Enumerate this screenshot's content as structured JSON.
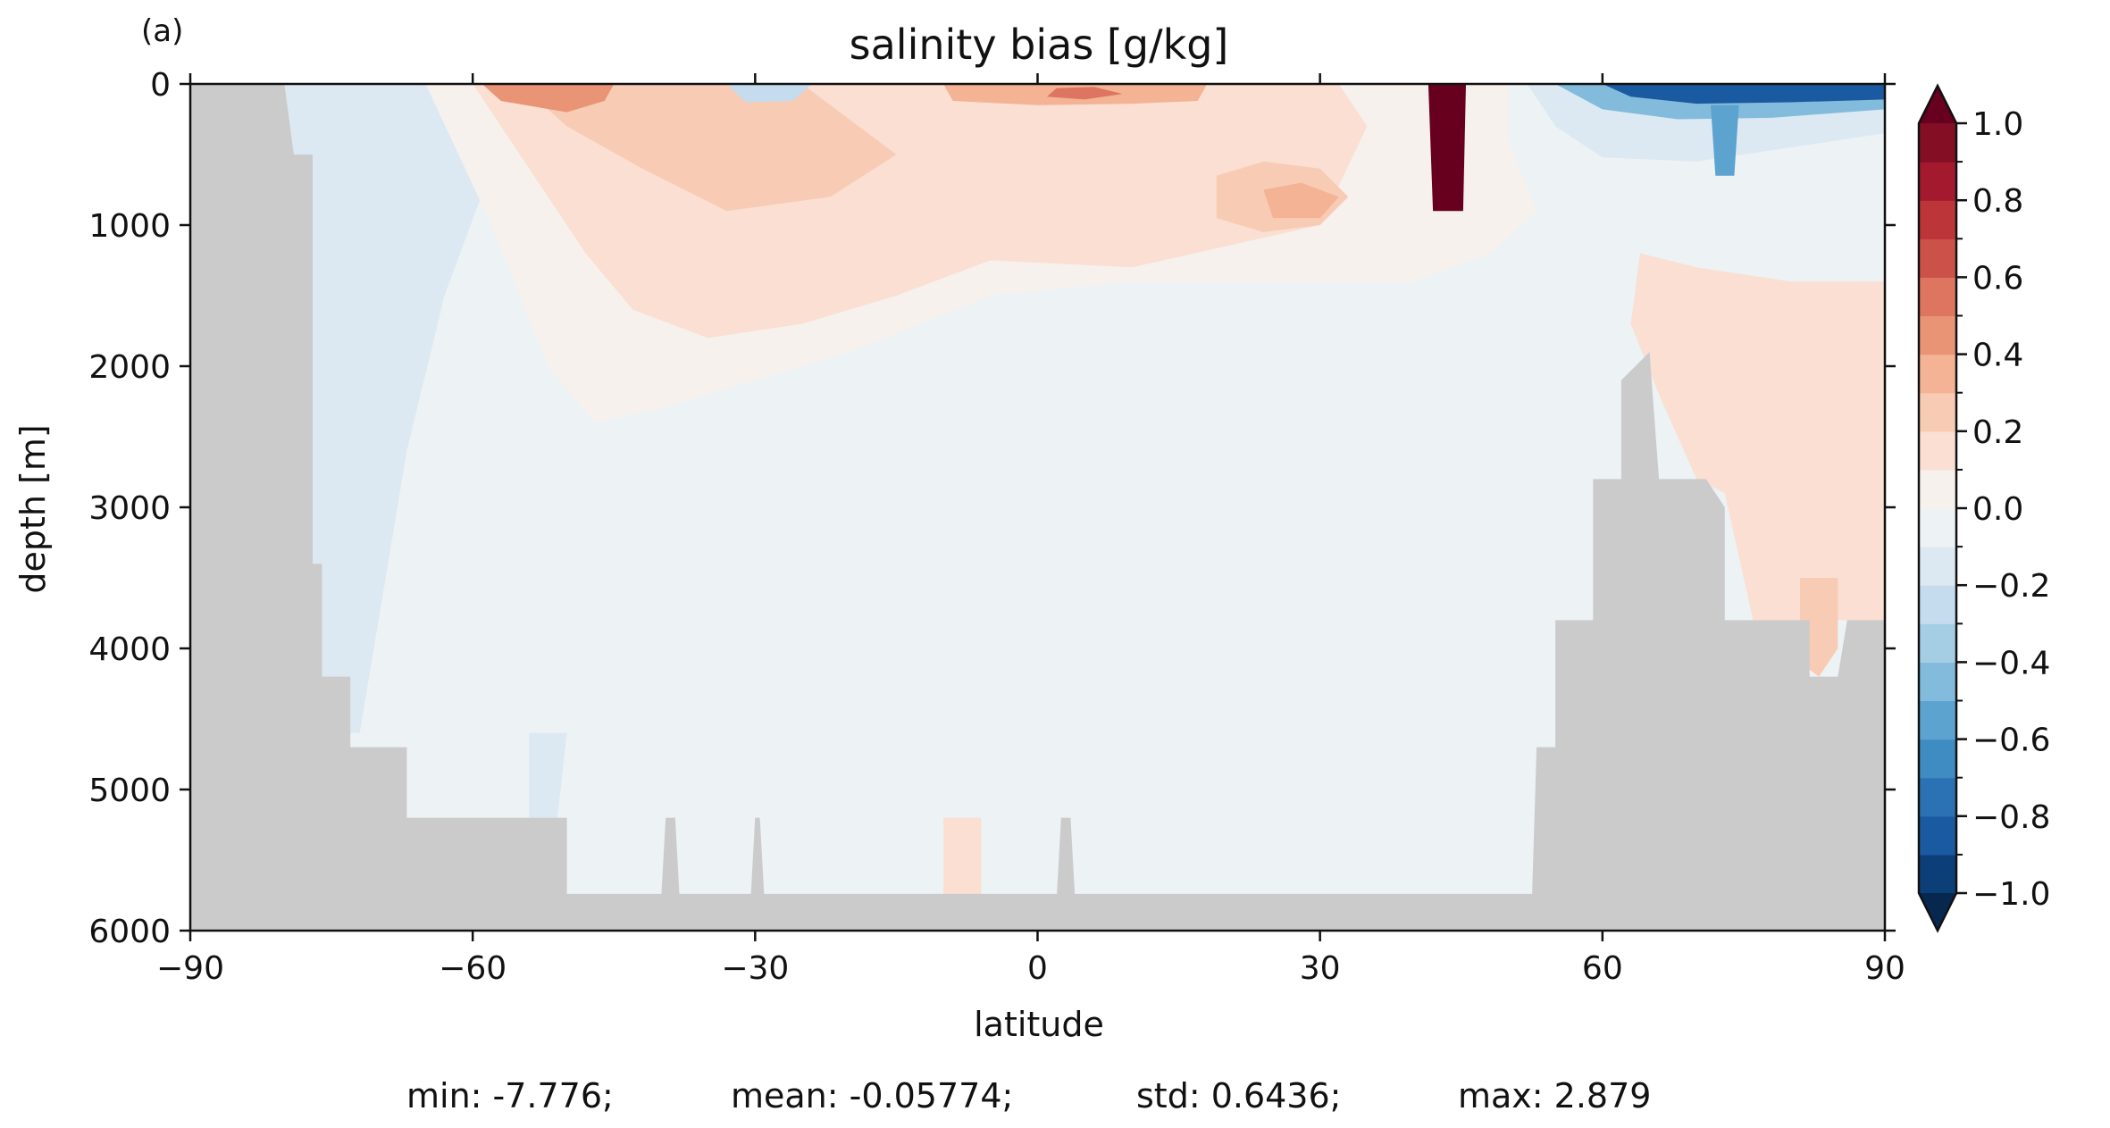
{
  "figure": {
    "panel_label": "(a)",
    "stats_line": {
      "min": "min: -7.776;",
      "mean": "mean: -0.05774;",
      "std": "std: 0.6436;",
      "max": "max: 2.879"
    }
  },
  "chart_data": {
    "type": "heatmap",
    "title": "salinity bias [g/kg]",
    "xlabel": "latitude",
    "ylabel": "depth [m]",
    "xlim": [
      -90,
      90
    ],
    "ylim": [
      6000,
      0
    ],
    "y_inverted": true,
    "x_ticks": [
      {
        "value": -90,
        "label": "−90"
      },
      {
        "value": -60,
        "label": "−60"
      },
      {
        "value": -30,
        "label": "−30"
      },
      {
        "value": 0,
        "label": "0"
      },
      {
        "value": 30,
        "label": "30"
      },
      {
        "value": 60,
        "label": "60"
      },
      {
        "value": 90,
        "label": "90"
      }
    ],
    "y_ticks": [
      {
        "value": 0,
        "label": "0"
      },
      {
        "value": 1000,
        "label": "1000"
      },
      {
        "value": 2000,
        "label": "2000"
      },
      {
        "value": 3000,
        "label": "3000"
      },
      {
        "value": 4000,
        "label": "4000"
      },
      {
        "value": 5000,
        "label": "5000"
      },
      {
        "value": 6000,
        "label": "6000"
      }
    ],
    "colorbar": {
      "min": -1.0,
      "max": 1.0,
      "extend": "both",
      "levels": [
        -1.0,
        -0.9,
        -0.8,
        -0.7,
        -0.6,
        -0.5,
        -0.4,
        -0.3,
        -0.2,
        -0.1,
        0.0,
        0.1,
        0.2,
        0.3,
        0.4,
        0.5,
        0.6,
        0.7,
        0.8,
        0.9,
        1.0
      ],
      "colors": [
        "#0c3e78",
        "#1a5aa0",
        "#2a72b3",
        "#3e8cc2",
        "#5ca3d0",
        "#82bbdc",
        "#a5cde4",
        "#c4dced",
        "#dde9f2",
        "#edf2f5",
        "#f7f1ee",
        "#fadfd2",
        "#f8cbb5",
        "#f3b394",
        "#ea9476",
        "#dd7560",
        "#cb5249",
        "#bc3539",
        "#a31a2f",
        "#840e24"
      ],
      "under_color": "#06284f",
      "over_color": "#67001f",
      "tick_labels": [
        {
          "value": 1.0,
          "label": "1.0"
        },
        {
          "value": 0.8,
          "label": "0.8"
        },
        {
          "value": 0.6,
          "label": "0.6"
        },
        {
          "value": 0.4,
          "label": "0.4"
        },
        {
          "value": 0.2,
          "label": "0.2"
        },
        {
          "value": 0.0,
          "label": "0.0"
        },
        {
          "value": -0.2,
          "label": "−0.2"
        },
        {
          "value": -0.4,
          "label": "−0.4"
        },
        {
          "value": -0.6,
          "label": "−0.6"
        },
        {
          "value": -0.8,
          "label": "−0.8"
        },
        {
          "value": -1.0,
          "label": "−1.0"
        }
      ]
    },
    "land_color": "#cbcbcb",
    "background_bias": -0.05,
    "regions": [
      {
        "name": "antarctic-fresh-column",
        "value": -0.15,
        "poly": [
          [
            -80,
            0
          ],
          [
            -56,
            0
          ],
          [
            -58,
            600
          ],
          [
            -63,
            1500
          ],
          [
            -67,
            2600
          ],
          [
            -70,
            3800
          ],
          [
            -72,
            4600
          ],
          [
            -77,
            4600
          ],
          [
            -78,
            2000
          ],
          [
            -79,
            500
          ]
        ]
      },
      {
        "name": "subsurface-salty-lens",
        "value": 0.05,
        "poly": [
          [
            -65,
            0
          ],
          [
            -20,
            0
          ],
          [
            20,
            0
          ],
          [
            50,
            0
          ],
          [
            50,
            400
          ],
          [
            53,
            900
          ],
          [
            48,
            1200
          ],
          [
            40,
            1400
          ],
          [
            25,
            1400
          ],
          [
            10,
            1400
          ],
          [
            -5,
            1500
          ],
          [
            -20,
            1900
          ],
          [
            -30,
            2100
          ],
          [
            -40,
            2300
          ],
          [
            -47,
            2400
          ],
          [
            -52,
            2000
          ],
          [
            -58,
            1000
          ]
        ]
      },
      {
        "name": "mid-salty-band",
        "value": 0.15,
        "poly": [
          [
            -60,
            0
          ],
          [
            -20,
            0
          ],
          [
            0,
            0
          ],
          [
            20,
            0
          ],
          [
            32,
            0
          ],
          [
            35,
            300
          ],
          [
            30,
            1000
          ],
          [
            20,
            1150
          ],
          [
            10,
            1300
          ],
          [
            -5,
            1250
          ],
          [
            -15,
            1500
          ],
          [
            -25,
            1700
          ],
          [
            -35,
            1800
          ],
          [
            -43,
            1600
          ],
          [
            -48,
            1200
          ],
          [
            -53,
            700
          ]
        ]
      },
      {
        "name": "shallow-salty-core",
        "value": 0.25,
        "poly": [
          [
            -55,
            0
          ],
          [
            -40,
            0
          ],
          [
            -25,
            0
          ],
          [
            -15,
            500
          ],
          [
            -22,
            800
          ],
          [
            -33,
            900
          ],
          [
            -42,
            600
          ],
          [
            -50,
            300
          ]
        ]
      },
      {
        "name": "atlantic-salty-lens",
        "value": 0.25,
        "poly": [
          [
            19,
            650
          ],
          [
            24,
            550
          ],
          [
            30,
            600
          ],
          [
            33,
            800
          ],
          [
            30,
            1000
          ],
          [
            24,
            1050
          ],
          [
            19,
            950
          ]
        ]
      },
      {
        "name": "atlantic-salty-core",
        "value": 0.35,
        "poly": [
          [
            24,
            750
          ],
          [
            28,
            700
          ],
          [
            32,
            800
          ],
          [
            30,
            950
          ],
          [
            25,
            950
          ]
        ]
      },
      {
        "name": "south-surface-salty",
        "value": 0.4,
        "poly": [
          [
            -59,
            0
          ],
          [
            -45,
            0
          ],
          [
            -46,
            120
          ],
          [
            -50,
            200
          ],
          [
            -57,
            120
          ]
        ]
      },
      {
        "name": "north-surface-salty",
        "value": 0.35,
        "poly": [
          [
            -10,
            0
          ],
          [
            18,
            0
          ],
          [
            17,
            120
          ],
          [
            10,
            140
          ],
          [
            0,
            150
          ],
          [
            -9,
            120
          ]
        ]
      },
      {
        "name": "north-surface-salty-core",
        "value": 0.55,
        "poly": [
          [
            2,
            30
          ],
          [
            6,
            20
          ],
          [
            9,
            70
          ],
          [
            5,
            110
          ],
          [
            1,
            90
          ]
        ]
      },
      {
        "name": "arctic-deep-salty",
        "value": 0.12,
        "poly": [
          [
            64,
            1200
          ],
          [
            70,
            1300
          ],
          [
            80,
            1400
          ],
          [
            90,
            1400
          ],
          [
            90,
            3800
          ],
          [
            82,
            3800
          ],
          [
            76,
            3800
          ],
          [
            73,
            2900
          ],
          [
            70,
            2800
          ],
          [
            66,
            2200
          ],
          [
            63,
            1700
          ]
        ]
      },
      {
        "name": "arctic-deep-salty-core",
        "value": 0.25,
        "poly": [
          [
            81,
            3500
          ],
          [
            85,
            3500
          ],
          [
            85,
            4000
          ],
          [
            83,
            4200
          ],
          [
            81,
            4100
          ]
        ]
      },
      {
        "name": "arctic-upper-fresh",
        "value": -0.2,
        "poly": [
          [
            52,
            0
          ],
          [
            90,
            0
          ],
          [
            90,
            350
          ],
          [
            80,
            450
          ],
          [
            70,
            550
          ],
          [
            60,
            520
          ],
          [
            55,
            300
          ]
        ]
      },
      {
        "name": "arctic-fresh-mid",
        "value": -0.45,
        "poly": [
          [
            55,
            0
          ],
          [
            90,
            0
          ],
          [
            90,
            180
          ],
          [
            78,
            240
          ],
          [
            68,
            250
          ],
          [
            60,
            180
          ]
        ]
      },
      {
        "name": "arctic-fresh-strong",
        "value": -0.85,
        "poly": [
          [
            60,
            0
          ],
          [
            90,
            0
          ],
          [
            90,
            110
          ],
          [
            80,
            130
          ],
          [
            70,
            140
          ],
          [
            63,
            90
          ]
        ]
      },
      {
        "name": "arctic-fresh-plume",
        "value": -0.55,
        "poly": [
          [
            71.5,
            150
          ],
          [
            74.5,
            150
          ],
          [
            74,
            650
          ],
          [
            72,
            650
          ]
        ]
      },
      {
        "name": "mediterranean-outflow",
        "value": 1.5,
        "poly": [
          [
            41.5,
            0
          ],
          [
            45.5,
            0
          ],
          [
            45.2,
            900
          ],
          [
            42,
            900
          ]
        ]
      },
      {
        "name": "south-fresh-patch-1",
        "value": -0.25,
        "poly": [
          [
            -33,
            0
          ],
          [
            -24,
            0
          ],
          [
            -26,
            120
          ],
          [
            -31,
            130
          ]
        ]
      },
      {
        "name": "south-fresh-patch-2",
        "value": -0.15,
        "poly": [
          [
            -54,
            4600
          ],
          [
            -50,
            4600
          ],
          [
            -51,
            5200
          ],
          [
            -54,
            5200
          ]
        ]
      },
      {
        "name": "equatorial-deep-salty",
        "value": 0.12,
        "poly": [
          [
            -10,
            5200
          ],
          [
            -6,
            5200
          ],
          [
            -6,
            5800
          ],
          [
            -10,
            5800
          ]
        ]
      }
    ],
    "land": [
      {
        "name": "antarctica",
        "poly": [
          [
            -90,
            0
          ],
          [
            -80,
            0
          ],
          [
            -79,
            500
          ],
          [
            -77,
            500
          ],
          [
            -77,
            3400
          ],
          [
            -76,
            3400
          ],
          [
            -76,
            4200
          ],
          [
            -73,
            4200
          ],
          [
            -73,
            4700
          ],
          [
            -67,
            4700
          ],
          [
            -67,
            5200
          ],
          [
            -50,
            5200
          ],
          [
            -50,
            5800
          ],
          [
            -90,
            5800
          ]
        ]
      },
      {
        "name": "ridge-1",
        "poly": [
          [
            -40,
            5800
          ],
          [
            -39.5,
            5200
          ],
          [
            -38.5,
            5200
          ],
          [
            -38,
            5800
          ]
        ]
      },
      {
        "name": "ridge-2",
        "poly": [
          [
            -30.5,
            5800
          ],
          [
            -30,
            5200
          ],
          [
            -29.5,
            5200
          ],
          [
            -29,
            5800
          ]
        ]
      },
      {
        "name": "ridge-3",
        "poly": [
          [
            2,
            5800
          ],
          [
            2.5,
            5200
          ],
          [
            3.5,
            5200
          ],
          [
            4,
            5800
          ]
        ]
      },
      {
        "name": "arctic-ridges",
        "poly": [
          [
            52.5,
            5800
          ],
          [
            53,
            4700
          ],
          [
            55,
            4700
          ],
          [
            55,
            3800
          ],
          [
            59,
            3800
          ],
          [
            59,
            2800
          ],
          [
            62,
            2800
          ],
          [
            62,
            2100
          ],
          [
            65,
            1900
          ],
          [
            66,
            2800
          ],
          [
            71,
            2800
          ],
          [
            73,
            3000
          ],
          [
            73,
            3800
          ],
          [
            82,
            3800
          ],
          [
            82,
            4200
          ],
          [
            85,
            4200
          ],
          [
            86,
            3800
          ],
          [
            90,
            3800
          ],
          [
            90,
            5800
          ]
        ]
      },
      {
        "name": "seafloor",
        "poly": [
          [
            -90,
            5740
          ],
          [
            90,
            5740
          ],
          [
            90,
            6000
          ],
          [
            -90,
            6000
          ]
        ]
      }
    ]
  }
}
